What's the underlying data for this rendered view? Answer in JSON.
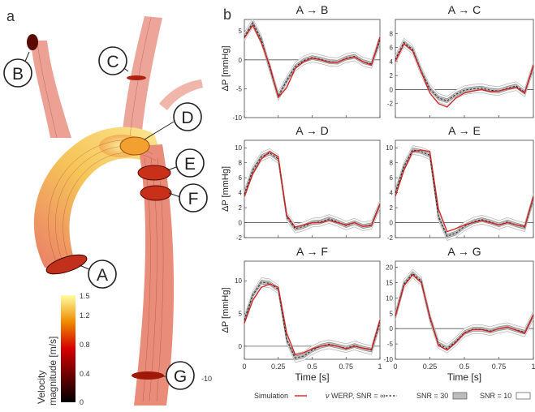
{
  "panel_labels": {
    "a": "a",
    "b": "b"
  },
  "colorbar": {
    "label_line1": "Velocity",
    "label_line2": "magnitude [m/s]",
    "ticks": [
      "1.5",
      "1.2",
      "0.8",
      "0.4",
      "0"
    ],
    "stray_label": "-10"
  },
  "markers": [
    "A",
    "B",
    "C",
    "D",
    "E",
    "F",
    "G"
  ],
  "legend": {
    "simulation": "Simulation",
    "vwerp_prefix": "ν",
    "vwerp_text": "WERP, SNR = ∞",
    "snr30": "SNR = 30",
    "snr10": "SNR = 10"
  },
  "chart_data": [
    {
      "type": "line",
      "title": "A → B",
      "ylabel": "ΔP [mmHg]",
      "xlabel": "",
      "ylim": [
        -10,
        7
      ],
      "yticks": [
        -10,
        -5,
        0,
        5
      ],
      "xticks": [],
      "x": [
        0,
        0.0625,
        0.125,
        0.1875,
        0.25,
        0.3125,
        0.375,
        0.4375,
        0.5,
        0.5625,
        0.625,
        0.6875,
        0.75,
        0.8125,
        0.875,
        0.9375,
        1
      ],
      "series": [
        {
          "name": "Simulation",
          "values": [
            3.8,
            6.0,
            3.0,
            -1.0,
            -6.5,
            -4.8,
            -1.5,
            -0.3,
            0.3,
            0.0,
            -0.4,
            -0.4,
            0.2,
            0.5,
            -0.3,
            -0.9,
            4.0
          ]
        },
        {
          "name": "νWERP, SNR = ∞",
          "values": [
            4.0,
            6.4,
            3.5,
            -1.4,
            -6.3,
            -3.6,
            -1.2,
            -0.1,
            0.4,
            0.1,
            -0.3,
            -0.4,
            0.3,
            0.6,
            -0.3,
            -0.7,
            3.4
          ]
        }
      ]
    },
    {
      "type": "line",
      "title": "A → C",
      "ylabel": "",
      "xlabel": "",
      "ylim": [
        -4,
        10
      ],
      "yticks": [
        -2,
        0,
        2,
        4,
        6,
        8
      ],
      "xticks": [],
      "x": [
        0,
        0.0625,
        0.125,
        0.1875,
        0.25,
        0.3125,
        0.375,
        0.4375,
        0.5,
        0.5625,
        0.625,
        0.6875,
        0.75,
        0.8125,
        0.875,
        0.9375,
        1
      ],
      "series": [
        {
          "name": "Simulation",
          "values": [
            4.0,
            6.5,
            5.5,
            2.5,
            -0.5,
            -2.0,
            -2.5,
            -1.2,
            -0.5,
            -0.2,
            0.0,
            -0.3,
            -0.2,
            0.1,
            0.3,
            -0.5,
            3.5
          ]
        },
        {
          "name": "νWERP, SNR = ∞",
          "values": [
            4.3,
            6.7,
            5.7,
            2.6,
            0.1,
            -1.2,
            -1.6,
            -0.7,
            -0.1,
            0.1,
            0.2,
            -0.1,
            -0.2,
            0.2,
            0.5,
            -0.4,
            3.3
          ]
        }
      ]
    },
    {
      "type": "line",
      "title": "A → D",
      "ylabel": "ΔP [mmHg]",
      "xlabel": "",
      "ylim": [
        -2,
        11
      ],
      "yticks": [
        -2,
        0,
        2,
        4,
        6,
        8,
        10
      ],
      "xticks": [],
      "x": [
        0,
        0.0625,
        0.125,
        0.1875,
        0.25,
        0.3125,
        0.375,
        0.4375,
        0.5,
        0.5625,
        0.625,
        0.6875,
        0.75,
        0.8125,
        0.875,
        0.9375,
        1
      ],
      "series": [
        {
          "name": "Simulation",
          "values": [
            3.5,
            6.5,
            8.5,
            9.5,
            8.8,
            1.0,
            -0.6,
            -0.3,
            0.0,
            0.0,
            0.3,
            0.0,
            -0.3,
            0.0,
            -0.5,
            -0.4,
            2.5
          ]
        },
        {
          "name": "νWERP, SNR = ∞",
          "values": [
            3.8,
            7.0,
            8.8,
            9.3,
            8.5,
            0.8,
            -0.8,
            -0.5,
            0.0,
            0.1,
            0.5,
            0.1,
            -0.4,
            0.0,
            -0.5,
            -0.3,
            2.4
          ]
        }
      ]
    },
    {
      "type": "line",
      "title": "A → E",
      "ylabel": "",
      "xlabel": "",
      "ylim": [
        -2,
        11
      ],
      "yticks": [
        -2,
        0,
        2,
        4,
        6,
        8,
        10
      ],
      "xticks": [],
      "x": [
        0,
        0.0625,
        0.125,
        0.1875,
        0.25,
        0.3125,
        0.375,
        0.4375,
        0.5,
        0.5625,
        0.625,
        0.6875,
        0.75,
        0.8125,
        0.875,
        0.9375,
        1
      ],
      "series": [
        {
          "name": "Simulation",
          "values": [
            3.5,
            7.0,
            9.5,
            9.7,
            9.5,
            1.8,
            -1.2,
            -0.8,
            -0.3,
            0.0,
            0.3,
            0.0,
            -0.3,
            0.0,
            -0.3,
            -0.5,
            3.5
          ]
        },
        {
          "name": "νWERP, SNR = ∞",
          "values": [
            4.0,
            7.5,
            9.7,
            9.5,
            9.0,
            0.8,
            -1.8,
            -1.4,
            -0.5,
            0.1,
            0.4,
            0.1,
            -0.3,
            0.1,
            -0.3,
            -0.6,
            3.3
          ]
        }
      ]
    },
    {
      "type": "line",
      "title": "A → F",
      "ylabel": "ΔP [mmHg]",
      "xlabel": "",
      "ylim": [
        -2,
        13
      ],
      "yticks": [
        0,
        5,
        10
      ],
      "xticks": [],
      "x": [
        0,
        0.0625,
        0.125,
        0.1875,
        0.25,
        0.3125,
        0.375,
        0.4375,
        0.5,
        0.5625,
        0.625,
        0.6875,
        0.75,
        0.8125,
        0.875,
        0.9375,
        1
      ],
      "series": [
        {
          "name": "Simulation",
          "values": [
            3.5,
            7.0,
            9.0,
            9.5,
            9.0,
            2.0,
            -1.3,
            -1.0,
            -0.4,
            0.0,
            0.2,
            0.0,
            -0.4,
            0.0,
            -0.3,
            -0.5,
            4.0
          ]
        },
        {
          "name": "νWERP, SNR = ∞",
          "values": [
            4.0,
            7.8,
            9.8,
            9.6,
            8.7,
            1.0,
            -1.8,
            -1.5,
            -0.6,
            0.0,
            0.3,
            0.0,
            -0.3,
            0.1,
            -0.3,
            -0.6,
            3.6
          ]
        }
      ]
    },
    {
      "type": "line",
      "title": "A → G",
      "ylabel": "",
      "xlabel": "Time [s]",
      "ylim": [
        -10,
        22
      ],
      "yticks": [
        -10,
        -5,
        0,
        5,
        10,
        15,
        20
      ],
      "xticks": [
        0,
        0.25,
        0.5,
        0.75,
        1
      ],
      "x": [
        0,
        0.0625,
        0.125,
        0.1875,
        0.25,
        0.3125,
        0.375,
        0.4375,
        0.5,
        0.5625,
        0.625,
        0.6875,
        0.75,
        0.8125,
        0.875,
        0.9375,
        1
      ],
      "series": [
        {
          "name": "Simulation",
          "values": [
            4.0,
            14.0,
            17.5,
            15.0,
            4.0,
            -5.5,
            -7.0,
            -4.5,
            -1.5,
            -0.3,
            -0.3,
            -1.0,
            0.0,
            0.5,
            -0.5,
            -1.5,
            4.5
          ]
        },
        {
          "name": "νWERP, SNR = ∞",
          "values": [
            4.2,
            14.5,
            18.0,
            15.5,
            3.5,
            -5.0,
            -6.5,
            -4.2,
            -1.3,
            -0.2,
            -0.2,
            -0.8,
            0.0,
            0.5,
            -0.4,
            -1.2,
            4.3
          ]
        }
      ]
    }
  ],
  "xlabel_left": "Time [s]",
  "xticklabels": [
    "0",
    "0.25",
    "0.5",
    "0.75",
    "1"
  ]
}
